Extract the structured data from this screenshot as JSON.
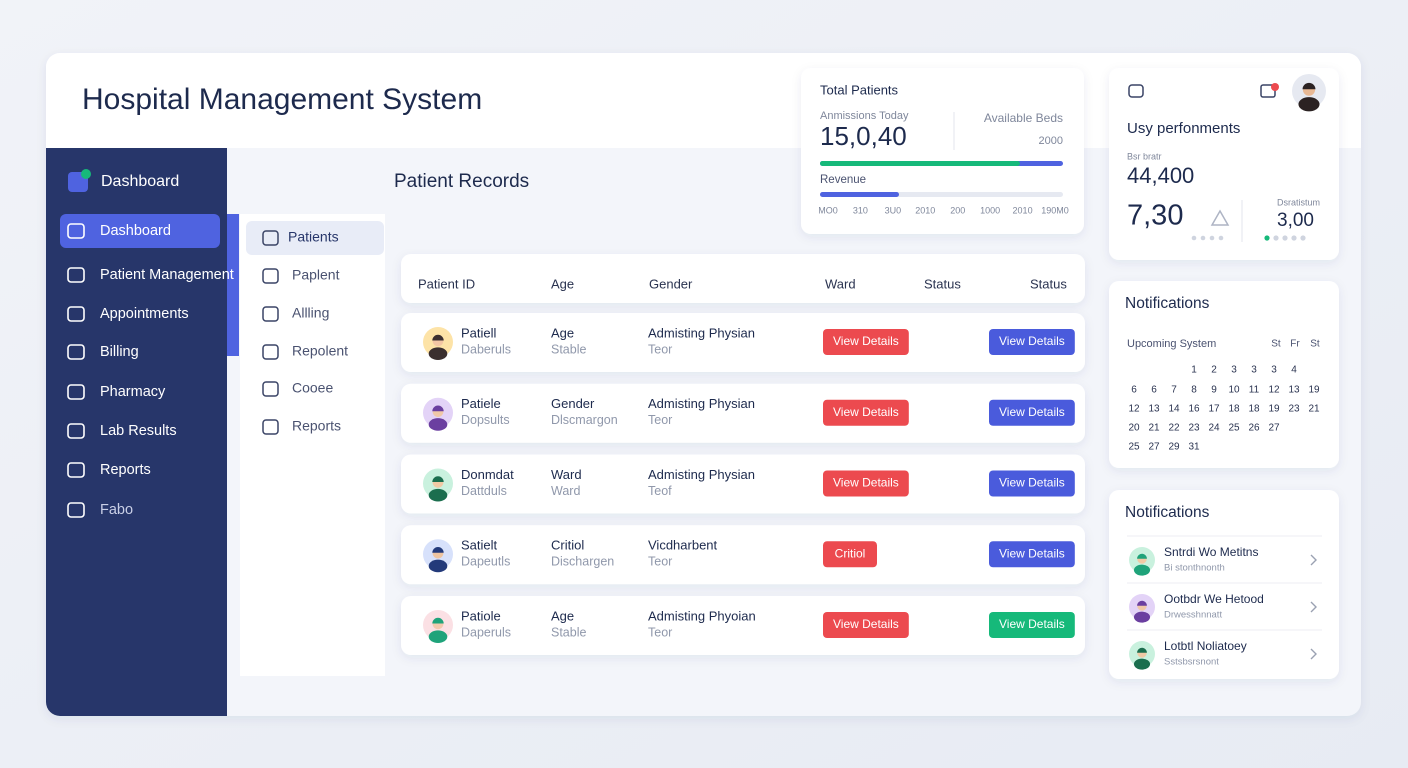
{
  "header": {
    "title": "Hospital Management System"
  },
  "sidebar": {
    "brand": "Dashboard",
    "items": [
      "Dashboard",
      "Patient Management",
      "Appointments",
      "Billing",
      "Pharmacy",
      "Lab Results",
      "Reports",
      "Fabo"
    ]
  },
  "submenu": {
    "items": [
      "Patients",
      "Paplent",
      "Allling",
      "Repolent",
      "Cooee",
      "Reports"
    ]
  },
  "records": {
    "title": "Patient Records",
    "columns": [
      "Patient ID",
      "Age",
      "Gender",
      "Ward",
      "Status",
      "Status"
    ],
    "rows": [
      {
        "name": "Patiell",
        "sub": "Daberuls",
        "col2": "Age",
        "col2_sub": "Stable",
        "col3": "Admisting Physian",
        "col3_sub": "Teor",
        "action": "View Details",
        "action2": "View Details",
        "action2_color": "#4a5bdc"
      },
      {
        "name": "Patiele",
        "sub": "Dopsults",
        "col2": "Gender",
        "col2_sub": "Dlscmargon",
        "col3": "Admisting Physian",
        "col3_sub": "Teor",
        "action": "View Details",
        "action2": "View Details",
        "action2_color": "#4a5bdc"
      },
      {
        "name": "Donmdat",
        "sub": "Dattduls",
        "col2": "Ward",
        "col2_sub": "Ward",
        "col3": "Admisting Physian",
        "col3_sub": "Teof",
        "action": "View Details",
        "action2": "View Details",
        "action2_color": "#4a5bdc"
      },
      {
        "name": "Satielt",
        "sub": "Dapeutls",
        "col2": "Critiol",
        "col2_sub": "Dischargen",
        "col3": "Vicdharbent",
        "col3_sub": "Teor",
        "action": "Critiol",
        "action2": "View Details",
        "action2_color": "#4a5bdc"
      },
      {
        "name": "Patiole",
        "sub": "Daperuls",
        "col2": "Age",
        "col2_sub": "Stable",
        "col3": "Admisting Phyoian",
        "col3_sub": "Teor",
        "action": "View Details",
        "action2": "View Details",
        "action2_color": "#16b97a"
      }
    ]
  },
  "stats": {
    "title": "Total Patients",
    "admissions_label": "Anmissions Today",
    "admissions_value": "15,0,40",
    "beds_label": "Available Beds",
    "beds_value": "2000",
    "revenue_label": "Revenue",
    "revenue_axis": [
      "MO0",
      "310",
      "3U0",
      "2010",
      "200",
      "1000",
      "2010",
      "190M0"
    ]
  },
  "performance": {
    "title": "Usy perfonments",
    "sub_label": "Bsr bratr",
    "value1": "44,400",
    "value2": "7,30",
    "side_label": "Dsratistum",
    "side_value": "3,00"
  },
  "calendar": {
    "title": "Notifications",
    "label": "Upcoming System",
    "weekdays": [
      "St",
      "Fr",
      "St"
    ],
    "rows": [
      [
        1,
        2,
        3,
        3,
        3,
        4
      ],
      [
        6,
        6,
        7,
        8,
        9,
        10,
        11,
        12,
        13,
        19
      ],
      [
        12,
        13,
        14,
        16,
        17,
        18,
        18,
        19,
        23,
        21
      ],
      [
        20,
        21,
        22,
        23,
        24,
        25,
        26,
        27
      ],
      [
        25,
        27,
        29,
        31
      ]
    ]
  },
  "notifications": {
    "title": "Notifications",
    "items": [
      {
        "name": "Sntrdi Wo Metitns",
        "sub": "Bi stonthnonth"
      },
      {
        "name": "Ootbdr We Hetood",
        "sub": "Drwesshnnatt"
      },
      {
        "name": "Lotbtl Noliatoey",
        "sub": "Sstsbsrsnont"
      }
    ]
  }
}
